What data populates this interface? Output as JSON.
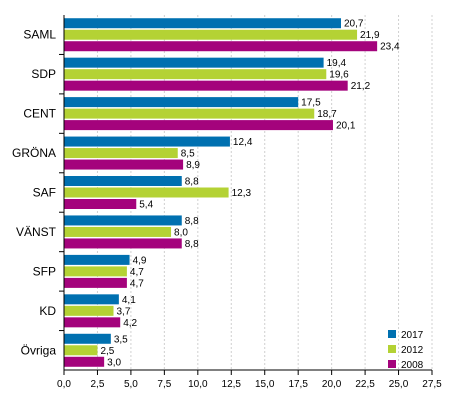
{
  "chart_data": {
    "type": "bar",
    "orientation": "horizontal",
    "categories": [
      "SAML",
      "SDP",
      "CENT",
      "GRÖNA",
      "SAF",
      "VÄNST",
      "SFP",
      "KD",
      "Övriga"
    ],
    "series": [
      {
        "name": "2017",
        "color": "#0070b0",
        "values": [
          20.7,
          19.4,
          17.5,
          12.4,
          8.8,
          8.8,
          4.9,
          4.1,
          3.5
        ],
        "labels": [
          "20,7",
          "19,4",
          "17,5",
          "12,4",
          "8,8",
          "8,8",
          "4,9",
          "4,1",
          "3,5"
        ]
      },
      {
        "name": "2012",
        "color": "#b4d234",
        "values": [
          21.9,
          19.6,
          18.7,
          8.5,
          12.3,
          8.0,
          4.7,
          3.7,
          2.5
        ],
        "labels": [
          "21,9",
          "19,6",
          "18,7",
          "8,5",
          "12,3",
          "8,0",
          "4,7",
          "3,7",
          "2,5"
        ]
      },
      {
        "name": "2008",
        "color": "#a4037c",
        "values": [
          23.4,
          21.2,
          20.1,
          8.9,
          5.4,
          8.8,
          4.7,
          4.2,
          3.0
        ],
        "labels": [
          "23,4",
          "21,2",
          "20,1",
          "8,9",
          "5,4",
          "8,8",
          "4,7",
          "4,2",
          "3,0"
        ]
      }
    ],
    "xlim": [
      0,
      27.5
    ],
    "xticks": [
      "0,0",
      "2,5",
      "5,0",
      "7,5",
      "10,0",
      "12,5",
      "15,0",
      "17,5",
      "20,0",
      "22,5",
      "25,0",
      "27,5"
    ],
    "title": "",
    "xlabel": "",
    "ylabel": "",
    "grid": "vertical",
    "legend": "bottom-right"
  }
}
